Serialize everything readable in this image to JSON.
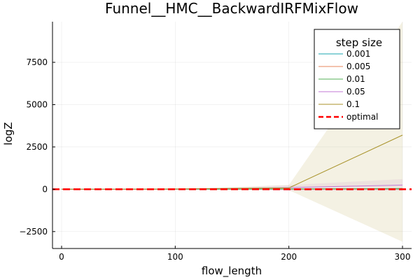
{
  "chart_data": {
    "type": "line",
    "title": "Funnel__HMC__BackwardIRFMixFlow",
    "xlabel": "flow_length",
    "ylabel": "logZ",
    "xlim": [
      -8,
      308
    ],
    "ylim": [
      -3500,
      9900
    ],
    "xticks": [
      0,
      100,
      200,
      300
    ],
    "xtick_labels": [
      "0",
      "100",
      "200",
      "300"
    ],
    "yticks": [
      -2500,
      0,
      2500,
      5000,
      7500
    ],
    "ytick_labels": [
      "−2500",
      "0",
      "2500",
      "5000",
      "7500"
    ],
    "grid": true,
    "legend_title": "step size",
    "legend_position": "top-right",
    "x": [
      0,
      50,
      100,
      150,
      200,
      300
    ],
    "series": [
      {
        "name": "0.001",
        "color": "#19a5b0",
        "values": [
          0,
          0,
          0,
          0,
          5,
          5
        ],
        "lower": [
          0,
          0,
          0,
          0,
          0,
          0
        ],
        "upper": [
          0,
          0,
          0,
          0,
          10,
          10
        ]
      },
      {
        "name": "0.005",
        "color": "#e7875c",
        "values": [
          0,
          0,
          0,
          5,
          10,
          20
        ],
        "lower": [
          0,
          0,
          0,
          0,
          0,
          0
        ],
        "upper": [
          0,
          0,
          0,
          10,
          20,
          40
        ]
      },
      {
        "name": "0.01",
        "color": "#56b257",
        "values": [
          0,
          0,
          0,
          10,
          20,
          40
        ],
        "lower": [
          0,
          0,
          0,
          0,
          0,
          0
        ],
        "upper": [
          0,
          0,
          0,
          20,
          40,
          80
        ]
      },
      {
        "name": "0.05",
        "color": "#c37ad5",
        "values": [
          0,
          0,
          10,
          40,
          100,
          250
        ],
        "lower": [
          0,
          0,
          0,
          -20,
          -100,
          -100
        ],
        "upper": [
          0,
          0,
          20,
          100,
          250,
          600
        ]
      },
      {
        "name": "0.1",
        "color": "#a89229",
        "values": [
          0,
          0,
          20,
          50,
          80,
          3200
        ],
        "lower": [
          0,
          0,
          0,
          -20,
          -50,
          -3100
        ],
        "upper": [
          0,
          0,
          40,
          120,
          250,
          9900
        ]
      }
    ],
    "reference_line": {
      "name": "optimal",
      "value": 0,
      "color": "#ff0000",
      "style": "dashed"
    }
  }
}
